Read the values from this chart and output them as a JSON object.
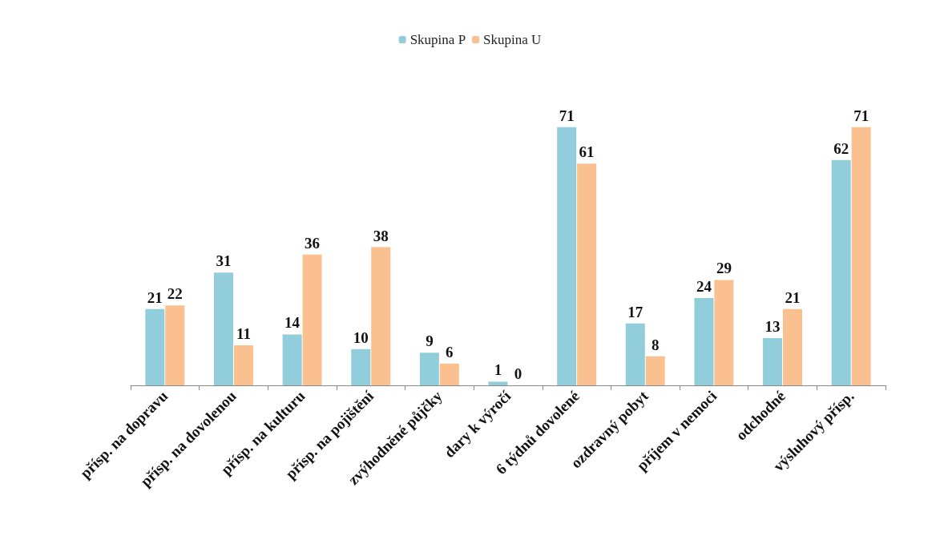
{
  "chart_data": {
    "type": "bar",
    "categories": [
      "přísp. na dopravu",
      "přísp. na dovolenou",
      "přísp. na kulturu",
      "přísp. na pojištění",
      "zvýhodněné půjčky",
      "dary k výročí",
      "6 týdnů dovolené",
      "ozdravný pobyt",
      "příjem v nemoci",
      "odchodné",
      "výsluhový přísp."
    ],
    "series": [
      {
        "name": "Skupina P",
        "color": "#92cddc",
        "values": [
          21,
          31,
          14,
          10,
          9,
          1,
          71,
          17,
          24,
          13,
          62
        ]
      },
      {
        "name": "Skupina U",
        "color": "#fac090",
        "values": [
          22,
          11,
          36,
          38,
          6,
          0,
          61,
          8,
          29,
          21,
          71
        ]
      }
    ],
    "data_labels": true,
    "legend": "top",
    "grid": false
  }
}
